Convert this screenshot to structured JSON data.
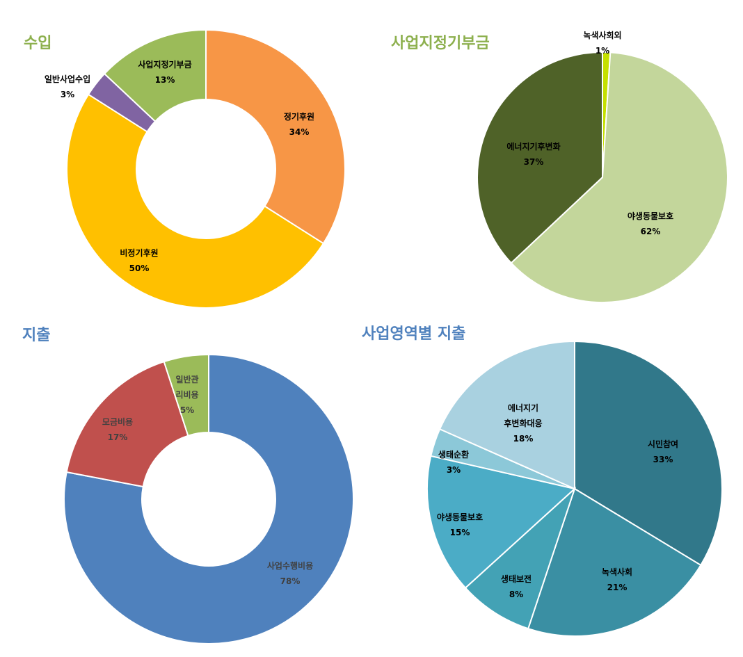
{
  "chart_data": [
    {
      "type": "pie",
      "title": "수입",
      "title_color": "#8DB04E",
      "donut": true,
      "labels": [
        "정기후원",
        "비정기후원",
        "일반사업수입",
        "사업지정기부금"
      ],
      "values": [
        34,
        50,
        3,
        13
      ],
      "value_labels": [
        "34%",
        "50%",
        "3%",
        "13%"
      ],
      "colors": [
        "#F79646",
        "#FFC000",
        "#8064A2",
        "#9BBB59"
      ],
      "label_color": "#000000"
    },
    {
      "type": "pie",
      "title": "사업지정기부금",
      "title_color": "#8DB04E",
      "donut": false,
      "labels": [
        "녹색사회외",
        "야생동물보호",
        "에너지기후변화"
      ],
      "values": [
        1,
        62,
        37
      ],
      "value_labels": [
        "1%",
        "62%",
        "37%"
      ],
      "colors": [
        "#C5E000",
        "#C3D69B",
        "#4F6228"
      ],
      "label_color": "#000000"
    },
    {
      "type": "pie",
      "title": "지출",
      "title_color": "#4F81BD",
      "donut": true,
      "labels": [
        "사업수행비용",
        "모금비용",
        "일반관리비용"
      ],
      "values": [
        78,
        17,
        5
      ],
      "value_labels": [
        "78%",
        "17%",
        "5%"
      ],
      "colors": [
        "#4F81BD",
        "#C0504D",
        "#9BBB59"
      ],
      "label_color": "#404040"
    },
    {
      "type": "pie",
      "title": "사업영역별 지출",
      "title_color": "#4F81BD",
      "donut": false,
      "labels": [
        "시민참여",
        "녹색사회",
        "생태보전",
        "야생동물보호",
        "생태순환",
        "에너지기후변화대응"
      ],
      "values": [
        33,
        21,
        8,
        15,
        3,
        18
      ],
      "value_labels": [
        "33%",
        "21%",
        "8%",
        "15%",
        "3%",
        "18%"
      ],
      "colors": [
        "#31788A",
        "#3A8FA3",
        "#43A2B5",
        "#4BACC6",
        "#8CC8D8",
        "#A9D1E0"
      ],
      "label_color": "#000000"
    }
  ]
}
